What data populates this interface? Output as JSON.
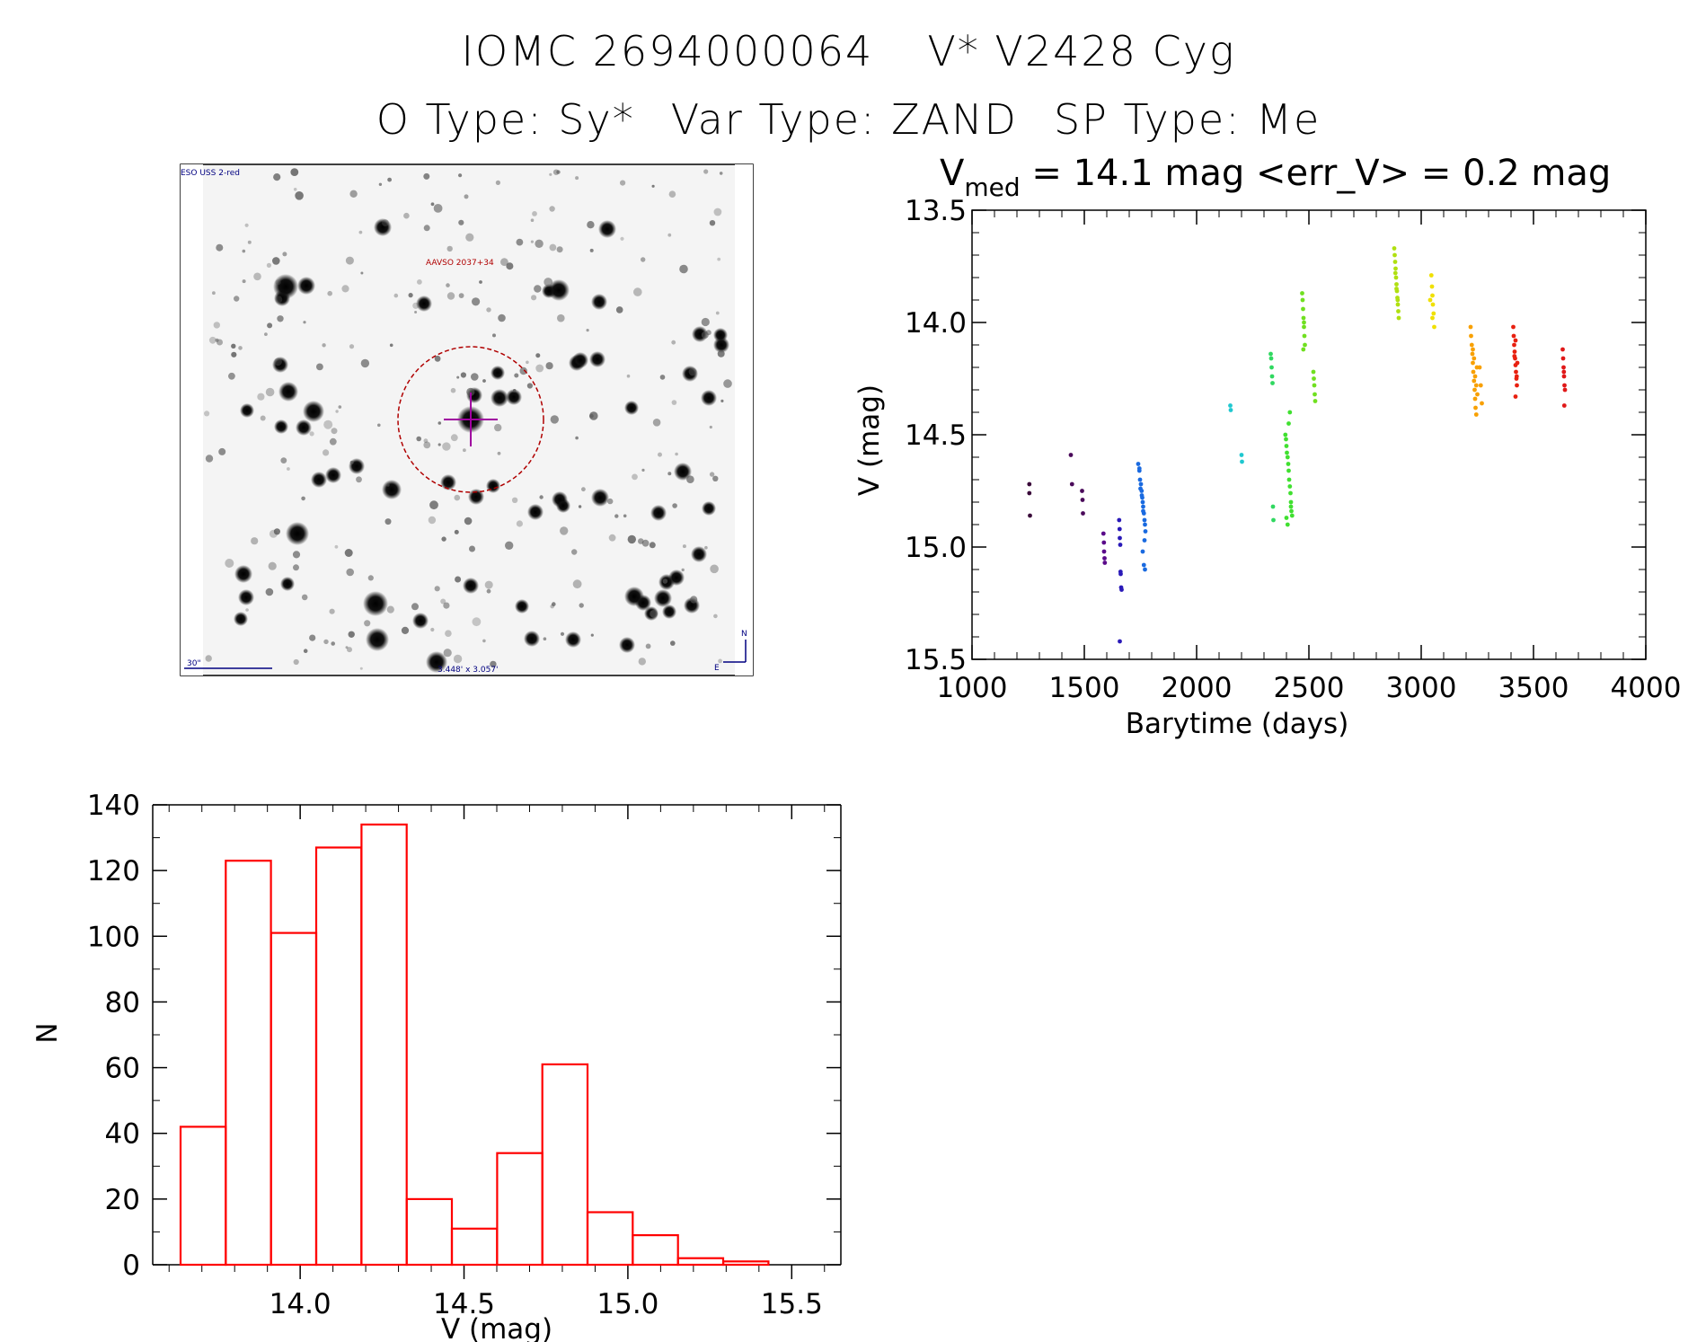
{
  "header": {
    "object_id": "IOMC 2694000064",
    "star_name": "V* V2428 Cyg",
    "o_type": "O Type: Sy*",
    "var_type": "Var Type: ZAND",
    "sp_type": "SP Type: Me"
  },
  "finder_chart": {
    "survey_label": "ESO USS 2-red",
    "aavso_label": "AAVSO 2037+34",
    "scale_label": "30\"",
    "fov_label": "3.448' x 3.057'",
    "compass_n": "N",
    "compass_e": "E",
    "colors": {
      "circle": "#b00000",
      "crosshair": "#a000a0",
      "label": "#000080"
    }
  },
  "chart_data": [
    {
      "type": "scatter",
      "title_prefix": "V",
      "title_subscript": "med",
      "title_rest": " = 14.1 mag <err_V> = 0.2 mag",
      "xlabel": "Barytime (days)",
      "ylabel": "V (mag)",
      "xlim": [
        1000,
        4000
      ],
      "ylim": [
        15.5,
        13.5
      ],
      "xticks": [
        "1000",
        "1500",
        "2000",
        "2500",
        "3000",
        "3500",
        "4000"
      ],
      "yticks": [
        "13.5",
        "14.0",
        "14.5",
        "15.0",
        "15.5"
      ],
      "series": [
        {
          "color": "#3a0a3a",
          "x": [
            1255,
            1255,
            1258
          ],
          "y": [
            14.72,
            14.76,
            14.86
          ]
        },
        {
          "color": "#4a0a5a",
          "x": [
            1440,
            1445,
            1490,
            1492,
            1494
          ],
          "y": [
            14.59,
            14.72,
            14.75,
            14.79,
            14.85
          ]
        },
        {
          "color": "#5a0a8a",
          "x": [
            1585,
            1587,
            1588,
            1590,
            1591
          ],
          "y": [
            14.94,
            14.98,
            15.02,
            15.05,
            15.07
          ]
        },
        {
          "color": "#2a1ab8",
          "x": [
            1655,
            1657,
            1658,
            1660,
            1661,
            1662,
            1664,
            1666,
            1658
          ],
          "y": [
            14.88,
            14.92,
            14.96,
            14.99,
            15.11,
            15.12,
            15.18,
            15.19,
            15.42
          ]
        },
        {
          "color": "#1a6ae0",
          "x": [
            1740,
            1745,
            1748,
            1752,
            1755,
            1758,
            1760,
            1762,
            1765,
            1768,
            1770,
            1772,
            1745,
            1750,
            1756,
            1762,
            1768,
            1760,
            1765,
            1770
          ],
          "y": [
            14.63,
            14.65,
            14.7,
            14.72,
            14.75,
            14.78,
            14.8,
            14.82,
            14.85,
            14.88,
            14.9,
            14.93,
            14.66,
            14.74,
            14.77,
            14.84,
            14.97,
            15.02,
            15.08,
            15.1
          ]
        },
        {
          "color": "#20c8d0",
          "x": [
            2150,
            2152,
            2200,
            2202
          ],
          "y": [
            14.37,
            14.39,
            14.59,
            14.62
          ]
        },
        {
          "color": "#30d860",
          "x": [
            2330,
            2332,
            2334,
            2336,
            2338,
            2340,
            2342
          ],
          "y": [
            14.14,
            14.16,
            14.2,
            14.24,
            14.27,
            14.82,
            14.88
          ]
        },
        {
          "color": "#40e030",
          "x": [
            2395,
            2398,
            2400,
            2402,
            2405,
            2408,
            2410,
            2412,
            2415,
            2418,
            2420,
            2422,
            2400,
            2405,
            2410,
            2415,
            2420,
            2425
          ],
          "y": [
            14.5,
            14.52,
            14.55,
            14.58,
            14.6,
            14.63,
            14.66,
            14.7,
            14.73,
            14.76,
            14.8,
            14.84,
            14.87,
            14.9,
            14.45,
            14.4,
            14.82,
            14.86
          ]
        },
        {
          "color": "#70e020",
          "x": [
            2470,
            2472,
            2474,
            2476,
            2478,
            2480,
            2482,
            2475,
            2478,
            2520,
            2522,
            2524,
            2526,
            2528
          ],
          "y": [
            13.87,
            13.9,
            13.94,
            13.98,
            14.02,
            14.06,
            14.1,
            14.12,
            14.0,
            14.22,
            14.25,
            14.28,
            14.32,
            14.35
          ]
        },
        {
          "color": "#b0e010",
          "x": [
            2880,
            2882,
            2884,
            2886,
            2888,
            2890,
            2892,
            2894,
            2896,
            2898,
            2900,
            2885,
            2890,
            2895
          ],
          "y": [
            13.67,
            13.7,
            13.73,
            13.76,
            13.8,
            13.83,
            13.86,
            13.89,
            13.92,
            13.95,
            13.98,
            13.78,
            13.85,
            13.9
          ]
        },
        {
          "color": "#f0e000",
          "x": [
            3045,
            3048,
            3050,
            3052,
            3055,
            3058,
            3050,
            3040
          ],
          "y": [
            13.79,
            13.84,
            13.88,
            13.92,
            13.96,
            14.02,
            13.98,
            13.9
          ]
        },
        {
          "color": "#f8a000",
          "x": [
            3220,
            3222,
            3225,
            3228,
            3230,
            3232,
            3235,
            3238,
            3240,
            3242,
            3245,
            3248,
            3230,
            3235,
            3240,
            3245,
            3250,
            3260,
            3265,
            3270
          ],
          "y": [
            14.02,
            14.06,
            14.1,
            14.14,
            14.18,
            14.22,
            14.26,
            14.3,
            14.34,
            14.38,
            14.41,
            14.2,
            14.12,
            14.16,
            14.24,
            14.28,
            14.32,
            14.2,
            14.28,
            14.36
          ]
        },
        {
          "color": "#e82010",
          "x": [
            3410,
            3412,
            3414,
            3416,
            3418,
            3420,
            3422,
            3424,
            3426,
            3428,
            3415,
            3420,
            3425,
            3420
          ],
          "y": [
            14.02,
            14.06,
            14.1,
            14.13,
            14.16,
            14.19,
            14.22,
            14.25,
            14.28,
            14.18,
            14.15,
            14.08,
            14.24,
            14.33
          ]
        },
        {
          "color": "#e01818",
          "x": [
            3630,
            3632,
            3634,
            3636,
            3638,
            3640,
            3635,
            3637
          ],
          "y": [
            14.12,
            14.16,
            14.2,
            14.24,
            14.28,
            14.3,
            14.22,
            14.37
          ]
        }
      ]
    },
    {
      "type": "bar",
      "subtype": "histogram",
      "xlabel": "V (mag)",
      "ylabel": "N",
      "xlim": [
        13.55,
        15.65
      ],
      "ylim": [
        0,
        140
      ],
      "bin_width": 0.138,
      "bin_starts": [
        13.635,
        13.773,
        13.911,
        14.049,
        14.187,
        14.325,
        14.463,
        14.601,
        14.739,
        14.877,
        15.015,
        15.153,
        15.291
      ],
      "counts": [
        42,
        123,
        101,
        127,
        134,
        20,
        11,
        34,
        61,
        16,
        9,
        2,
        1
      ],
      "color": "#ff0000",
      "xticks": [
        "14.0",
        "14.5",
        "15.0",
        "15.5"
      ],
      "yticks": [
        "0",
        "20",
        "40",
        "60",
        "80",
        "100",
        "120",
        "140"
      ]
    }
  ]
}
